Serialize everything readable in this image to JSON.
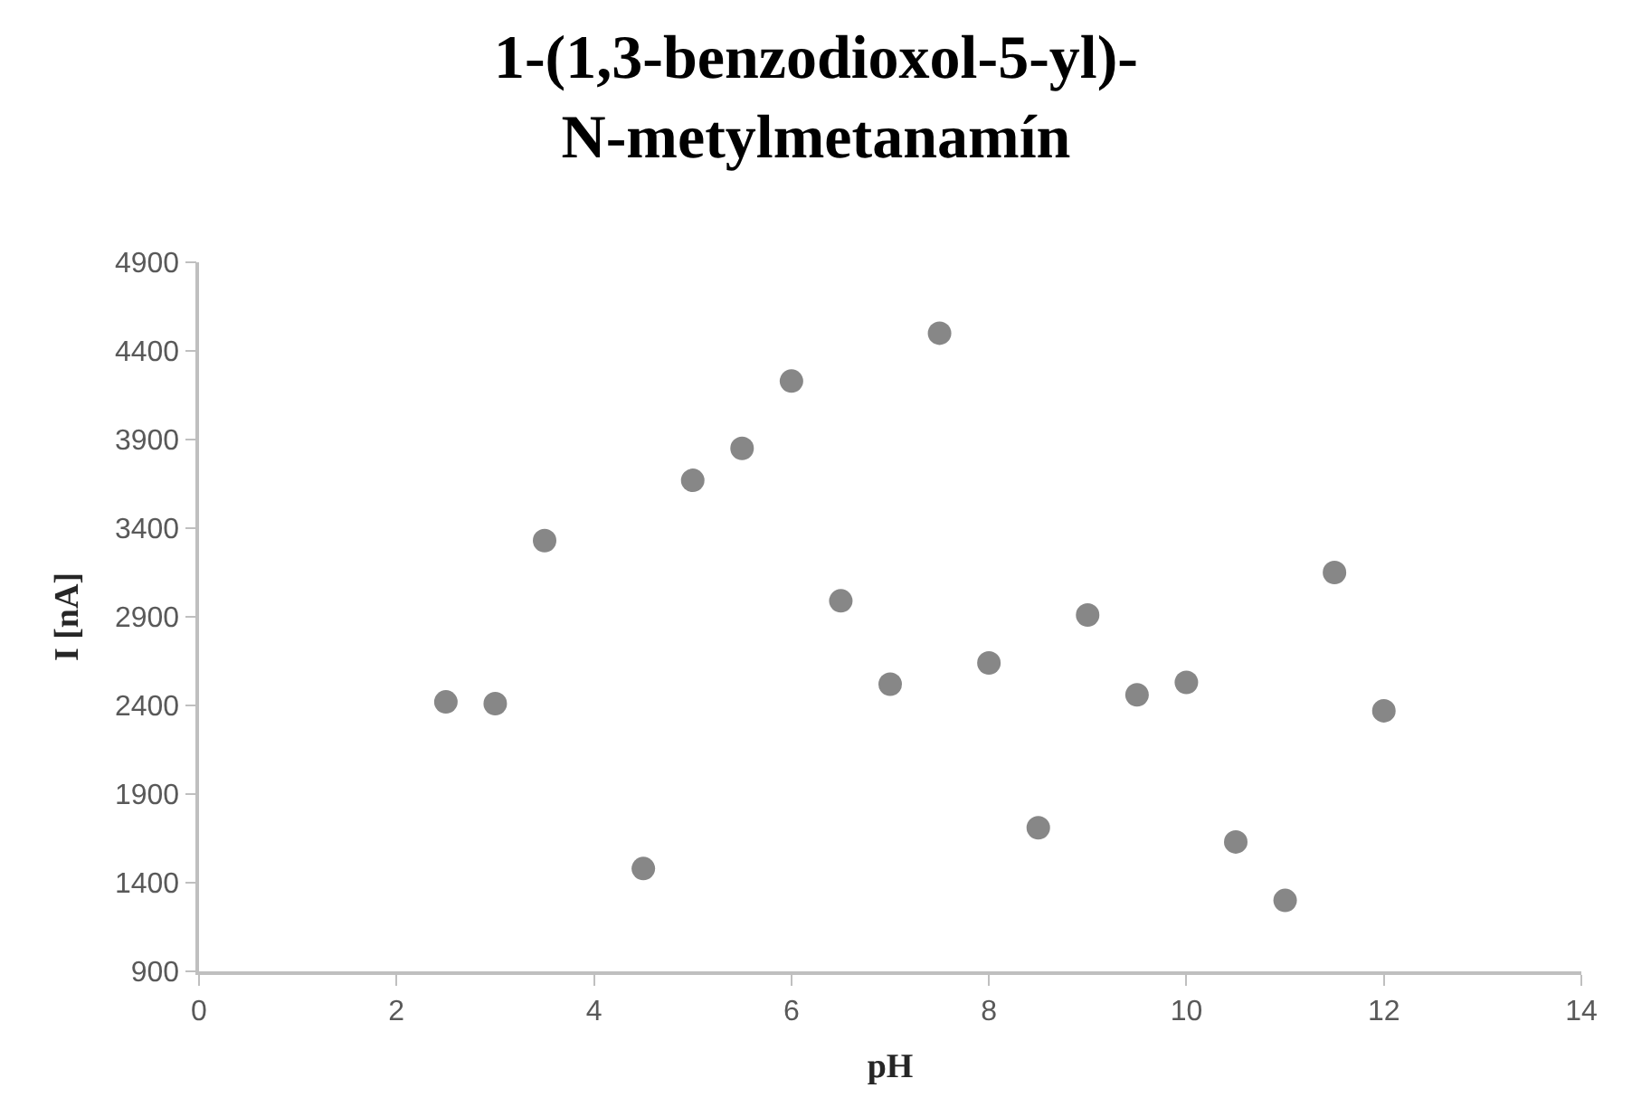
{
  "chart_data": {
    "type": "scatter",
    "title": "1-(1,3-benzodioxol-5-yl)-N-metylmetanamín",
    "xlabel": "pH",
    "ylabel": "I [nA]",
    "x": [
      2.5,
      3,
      3.5,
      4.5,
      5,
      5.5,
      6,
      6.5,
      7,
      7.5,
      8,
      8.5,
      9,
      9.5,
      10,
      10.5,
      11,
      11.5,
      12
    ],
    "series": [
      {
        "color": "#878787",
        "values": [
          2420,
          2410,
          3330,
          1480,
          3670,
          3850,
          4230,
          2990,
          2520,
          4500,
          2640,
          1710,
          2910,
          2460,
          2530,
          1630,
          1300,
          3150,
          2370
        ]
      }
    ],
    "xlim": [
      0,
      14
    ],
    "xticks": [
      0,
      2,
      4,
      6,
      8,
      10,
      12,
      14
    ],
    "ylim": [
      900,
      4900
    ],
    "yticks": [
      900,
      1400,
      1900,
      2400,
      2900,
      3400,
      3900,
      4400,
      4900
    ],
    "marker": "circle"
  }
}
